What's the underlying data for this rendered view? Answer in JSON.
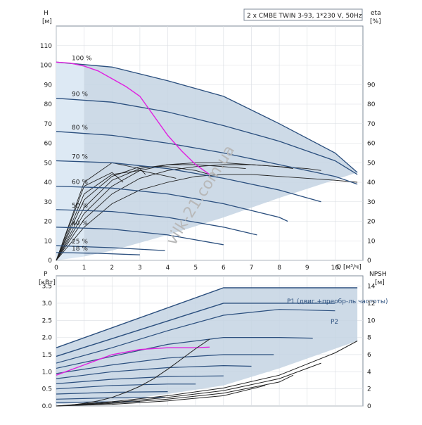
{
  "chart_data": [
    {
      "type": "line",
      "title": "2 x CMBE TWIN 3-93, 1*230 V, 50Hz",
      "xlabel": "Q [м³/ч]",
      "ylabel": "H [м]",
      "y_axis_symbol": "H",
      "y_axis_unit": "[м]",
      "y2_axis_symbol": "eta",
      "y2_axis_unit": "[%]",
      "x_axis_text": "Q [м³/ч]",
      "xlim": [
        0,
        11
      ],
      "ylim": [
        0,
        120
      ],
      "y2lim": [
        0,
        120
      ],
      "x_ticks": [
        0,
        1,
        2,
        3,
        4,
        5,
        6,
        7,
        8,
        9,
        10
      ],
      "y_ticks": [
        0,
        10,
        20,
        30,
        40,
        50,
        60,
        70,
        80,
        90,
        100,
        110
      ],
      "y2_ticks": [
        0,
        10,
        20,
        30,
        40,
        50,
        60,
        70,
        80,
        90
      ],
      "grid": true,
      "colors": {
        "curve": "#2b4f7e",
        "max_envelope": "#2b4f7e",
        "system_curve": "#e020e0",
        "operating_area": "#c4d3e3",
        "light_area": "#dde9f4",
        "efficiency": "#222222"
      },
      "speed_curves": [
        {
          "label": "100 %",
          "x": [
            0,
            2,
            4,
            6,
            8,
            10,
            10.8
          ],
          "y": [
            101.5,
            99,
            92,
            84,
            70,
            55,
            45
          ]
        },
        {
          "label": "90 %",
          "x": [
            0,
            2,
            4,
            6,
            8,
            10,
            10.8
          ],
          "y": [
            83,
            81,
            76,
            69,
            61,
            51,
            44
          ]
        },
        {
          "label": "80 %",
          "x": [
            0,
            2,
            4,
            6,
            8,
            10,
            10.8
          ],
          "y": [
            66,
            64,
            60,
            55,
            49,
            43,
            39
          ]
        },
        {
          "label": "70 %",
          "x": [
            0,
            2,
            4,
            6,
            8,
            9.5
          ],
          "y": [
            51,
            50,
            47,
            42,
            36,
            30
          ]
        },
        {
          "label": "60 %",
          "x": [
            0,
            2,
            4,
            6,
            8,
            8.3
          ],
          "y": [
            38,
            37,
            34,
            29,
            22,
            20
          ]
        },
        {
          "label": "50 %",
          "x": [
            0,
            2,
            4,
            6,
            7.2
          ],
          "y": [
            26,
            25,
            22,
            17,
            13
          ]
        },
        {
          "label": "40 %",
          "x": [
            0,
            2,
            4,
            6
          ],
          "y": [
            17,
            16,
            13,
            8
          ]
        },
        {
          "label": "25 %",
          "x": [
            0,
            2,
            3.9
          ],
          "y": [
            7.5,
            6.5,
            5
          ]
        },
        {
          "label": "18 %",
          "x": [
            0,
            1.5,
            3
          ],
          "y": [
            4,
            3.6,
            2.8
          ]
        }
      ],
      "system_curve": {
        "name": "",
        "x": [
          0,
          0.5,
          1,
          1.5,
          2,
          2.5,
          3,
          3.5,
          4,
          4.5,
          5,
          5.5
        ],
        "y": [
          101.5,
          101,
          99.5,
          97,
          93,
          89,
          84,
          74,
          64,
          56,
          49,
          44
        ]
      },
      "efficiency_curves": [
        {
          "x": [
            0,
            1,
            2,
            3,
            4,
            5,
            6,
            7,
            8,
            9,
            10,
            10.8
          ],
          "y": [
            0,
            17,
            29,
            36,
            40,
            43,
            44,
            44,
            43,
            42,
            41,
            40
          ]
        },
        {
          "x": [
            0,
            1,
            2,
            3,
            4,
            5,
            6,
            7,
            8,
            9,
            9.5
          ],
          "y": [
            0,
            21,
            34,
            42,
            46,
            48,
            49,
            49,
            48,
            47,
            46
          ]
        },
        {
          "x": [
            0,
            1,
            2,
            3,
            4,
            5,
            6,
            7,
            8,
            8.5
          ],
          "y": [
            0,
            24,
            38,
            46,
            49,
            50,
            50,
            49,
            48,
            47
          ]
        },
        {
          "x": [
            0,
            1,
            2,
            3,
            4,
            5,
            6,
            6.8
          ],
          "y": [
            0,
            27,
            41,
            47,
            49,
            49,
            48,
            47
          ]
        },
        {
          "x": [
            0,
            1,
            2,
            3,
            4,
            5,
            5.5
          ],
          "y": [
            0,
            31,
            43,
            48,
            48,
            46,
            44
          ]
        },
        {
          "x": [
            0,
            1,
            2,
            3,
            4,
            4.3
          ],
          "y": [
            0,
            34,
            44,
            46,
            43,
            42
          ]
        },
        {
          "x": [
            0,
            1,
            2,
            3,
            3.2
          ],
          "y": [
            0,
            40,
            50,
            47,
            44
          ]
        },
        {
          "x": [
            0,
            1,
            2,
            2.4
          ],
          "y": [
            0,
            38,
            45,
            40
          ]
        }
      ]
    },
    {
      "type": "line",
      "title": "",
      "y_axis_symbol": "P",
      "y_axis_unit": "[кВт]",
      "y2_axis_symbol": "NPSH",
      "y2_axis_unit": "[м]",
      "xlim": [
        0,
        11
      ],
      "ylim": [
        0,
        3.8
      ],
      "y2lim": [
        0,
        15.2
      ],
      "y_ticks": [
        0.0,
        0.5,
        1.0,
        1.5,
        2.0,
        2.5,
        3.0,
        3.5
      ],
      "y2_ticks": [
        0,
        2,
        4,
        6,
        8,
        10,
        12,
        14
      ],
      "grid": true,
      "series": [
        {
          "name": "P1 (двиг.+преобр-ль частоты)",
          "x": [
            0,
            6,
            10.8
          ],
          "y": [
            1.7,
            3.45,
            3.45
          ]
        },
        {
          "name": "P2",
          "x": [
            0,
            6,
            10.0
          ],
          "y": [
            1.45,
            3.0,
            3.0
          ]
        }
      ],
      "power_curves": [
        {
          "x": [
            0,
            2,
            4,
            6,
            8,
            10
          ],
          "y": [
            1.25,
            1.7,
            2.2,
            2.65,
            2.82,
            2.78
          ]
        },
        {
          "x": [
            0,
            2,
            4,
            6,
            8,
            9.2
          ],
          "y": [
            1.1,
            1.45,
            1.8,
            2.0,
            2.0,
            1.98
          ]
        },
        {
          "x": [
            0,
            2,
            4,
            6,
            7.8
          ],
          "y": [
            0.95,
            1.2,
            1.4,
            1.5,
            1.5
          ]
        },
        {
          "x": [
            0,
            2,
            4,
            6,
            7.0
          ],
          "y": [
            0.8,
            1.0,
            1.12,
            1.18,
            1.16
          ]
        },
        {
          "x": [
            0,
            2,
            4,
            6
          ],
          "y": [
            0.65,
            0.78,
            0.86,
            0.88
          ]
        },
        {
          "x": [
            0,
            2,
            4,
            5
          ],
          "y": [
            0.5,
            0.6,
            0.64,
            0.64
          ]
        },
        {
          "x": [
            0,
            2,
            4
          ],
          "y": [
            0.35,
            0.4,
            0.42
          ]
        },
        {
          "x": [
            0,
            2,
            3.9
          ],
          "y": [
            0.2,
            0.24,
            0.25
          ]
        },
        {
          "x": [
            0,
            1.5,
            3
          ],
          "y": [
            0.1,
            0.12,
            0.13
          ]
        }
      ],
      "system_power": {
        "x": [
          0,
          1,
          2,
          3,
          4,
          5,
          5.5
        ],
        "y": [
          0.9,
          1.2,
          1.5,
          1.65,
          1.7,
          1.7,
          1.72
        ]
      },
      "npsh_curves": [
        {
          "x": [
            0,
            2,
            4,
            6,
            8,
            10,
            10.8
          ],
          "y": [
            0,
            0.5,
            1.2,
            2.1,
            3.6,
            6.2,
            7.6
          ]
        },
        {
          "x": [
            0,
            2,
            4,
            6,
            8,
            9.5
          ],
          "y": [
            0,
            0.4,
            1.0,
            1.8,
            3.2,
            5.0
          ]
        },
        {
          "x": [
            0,
            2,
            4,
            6,
            8,
            8.5
          ],
          "y": [
            0,
            0.3,
            0.8,
            1.5,
            2.8,
            3.6
          ]
        },
        {
          "x": [
            0,
            2,
            4,
            6,
            7.5
          ],
          "y": [
            0,
            0.2,
            0.6,
            1.2,
            2.4
          ]
        }
      ],
      "npsh_steep": {
        "x": [
          0.5,
          1,
          1.5,
          2,
          2.5,
          3,
          3.5,
          4,
          4.5,
          5,
          5.5
        ],
        "y": [
          0.1,
          0.3,
          0.6,
          1.0,
          1.6,
          2.3,
          3.2,
          4.3,
          5.5,
          6.7,
          7.8
        ]
      }
    }
  ],
  "watermark": "vilk-21.com.ua"
}
